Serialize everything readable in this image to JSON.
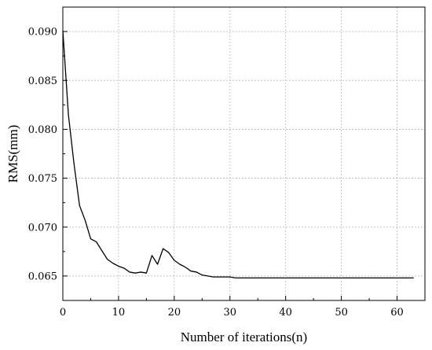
{
  "chart_data": {
    "type": "line",
    "xlabel": "Number of iterations(n)",
    "ylabel": "RMS(mm)",
    "xlim": [
      0,
      65
    ],
    "ylim": [
      0.0625,
      0.0925
    ],
    "xticks": [
      0,
      10,
      20,
      30,
      40,
      50,
      60
    ],
    "yticks": [
      0.065,
      0.07,
      0.075,
      0.08,
      0.085,
      0.09
    ],
    "xtick_labels": [
      "0",
      "10",
      "20",
      "30",
      "40",
      "50",
      "60"
    ],
    "ytick_labels": [
      "0.065",
      "0.070",
      "0.075",
      "0.080",
      "0.085",
      "0.090"
    ],
    "grid": true,
    "line_color": "#000000",
    "series": [
      {
        "x": [
          0,
          1,
          2,
          3,
          4,
          5,
          6,
          7,
          8,
          9,
          10,
          11,
          12,
          13,
          14,
          15,
          16,
          17,
          18,
          19,
          20,
          21,
          22,
          23,
          24,
          25,
          26,
          27,
          28,
          29,
          30,
          31,
          32,
          33,
          34,
          35,
          36,
          37,
          38,
          39,
          40,
          41,
          42,
          43,
          44,
          45,
          46,
          47,
          48,
          49,
          50,
          51,
          52,
          53,
          54,
          55,
          56,
          57,
          58,
          59,
          60,
          61,
          62,
          63
        ],
        "values": [
          0.0901,
          0.0815,
          0.0765,
          0.0722,
          0.0707,
          0.0688,
          0.0685,
          0.0676,
          0.0667,
          0.0663,
          0.066,
          0.0658,
          0.0654,
          0.0653,
          0.0654,
          0.0653,
          0.0671,
          0.0662,
          0.0678,
          0.0674,
          0.0666,
          0.0662,
          0.0659,
          0.0655,
          0.0654,
          0.0651,
          0.065,
          0.0649,
          0.0649,
          0.0649,
          0.0649,
          0.0648,
          0.0648,
          0.0648,
          0.0648,
          0.0648,
          0.0648,
          0.0648,
          0.0648,
          0.0648,
          0.0648,
          0.0648,
          0.0648,
          0.0648,
          0.0648,
          0.0648,
          0.0648,
          0.0648,
          0.0648,
          0.0648,
          0.0648,
          0.0648,
          0.0648,
          0.0648,
          0.0648,
          0.0648,
          0.0648,
          0.0648,
          0.0648,
          0.0648,
          0.0648,
          0.0648,
          0.0648,
          0.0648
        ]
      }
    ]
  }
}
